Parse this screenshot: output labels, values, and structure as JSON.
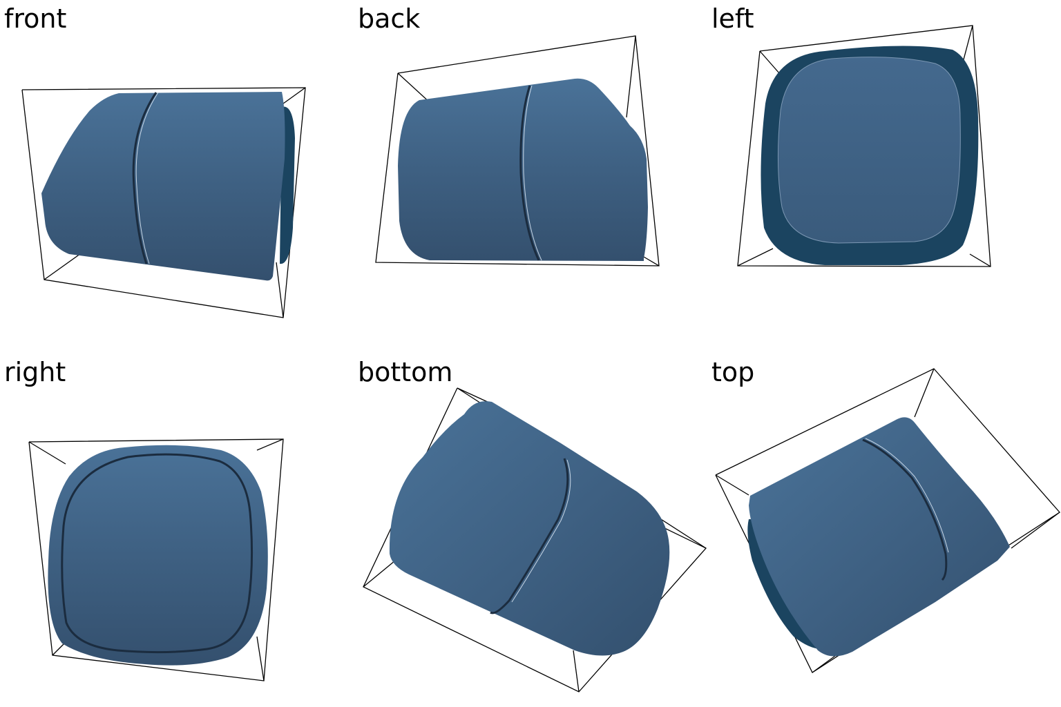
{
  "figure": {
    "views": [
      {
        "id": "front",
        "label": "front"
      },
      {
        "id": "back",
        "label": "back"
      },
      {
        "id": "left",
        "label": "left"
      },
      {
        "id": "right",
        "label": "right"
      },
      {
        "id": "bottom",
        "label": "bottom"
      },
      {
        "id": "top",
        "label": "top"
      }
    ],
    "colors": {
      "surface_light": "#466d93",
      "surface_mid": "#3d5f80",
      "surface_dark": "#344e6c",
      "end_cap": "#1b4460",
      "bounding_box": "#000000"
    }
  }
}
